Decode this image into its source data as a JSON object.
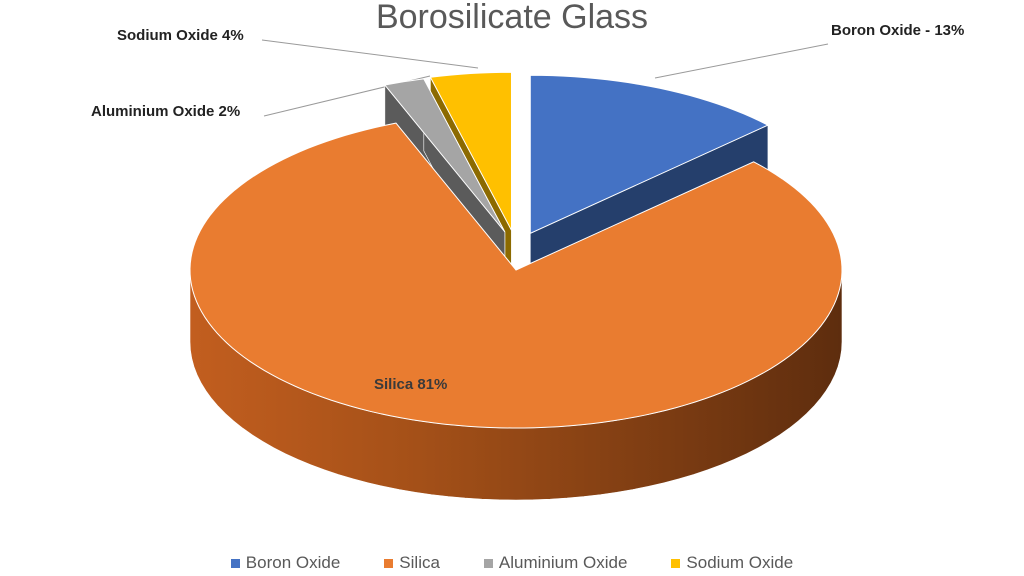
{
  "chart_data": {
    "type": "pie",
    "style": "3d-exploded",
    "title": "Borosilicate Glass",
    "legend_position": "bottom",
    "slices": [
      {
        "name": "Boron Oxide",
        "value": 13,
        "label": "Boron Oxide - 13%",
        "color": "#4472C4",
        "exploded": true
      },
      {
        "name": "Silica",
        "value": 81,
        "label": "Silica 81%",
        "color": "#E97C30",
        "exploded": false
      },
      {
        "name": "Aluminium Oxide",
        "value": 2,
        "label": "Aluminium Oxide 2%",
        "color": "#A5A5A5",
        "exploded": true
      },
      {
        "name": "Sodium Oxide",
        "value": 4,
        "label": "Sodium Oxide 4%",
        "color": "#FFC000",
        "exploded": true
      }
    ]
  }
}
